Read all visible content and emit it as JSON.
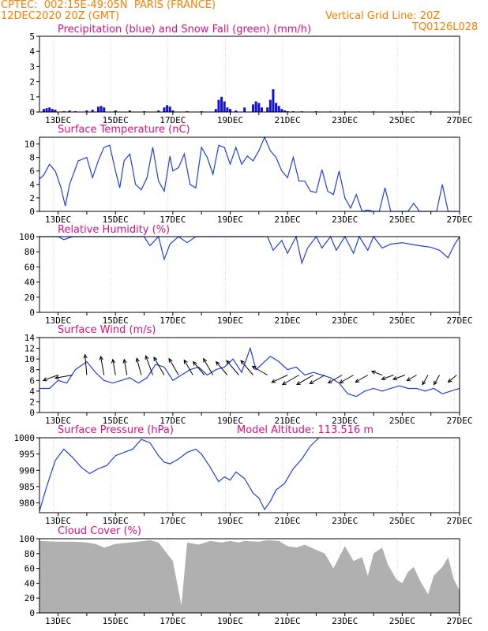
{
  "header": {
    "line1_left": "CPTEC:  002:15E-49:05N  PARIS (FRANCE)",
    "line2_left": "12DEC2020 20Z (GMT)",
    "line2_right": "Vertical Grid Line: 20Z",
    "code": "TQ0126L028"
  },
  "colors": {
    "title": "#e0107a",
    "header": "#ff7f00",
    "line": "#2040e0",
    "precip": "#1010e0",
    "snow": "#20a020",
    "cloud": "#b0b0b0",
    "grid": "#000000"
  },
  "x_axis": {
    "range_days": [
      12.35,
      27.0
    ],
    "labels": [
      "13DEC",
      "15DEC",
      "17DEC",
      "19DEC",
      "21DEC",
      "23DEC",
      "25DEC",
      "27DEC"
    ],
    "label_days": [
      13,
      15,
      17,
      19,
      21,
      23,
      25,
      27
    ]
  },
  "chart_data": [
    {
      "type": "bar",
      "title": "Precipitation (blue) and Snow Fall (green) (mm/h)",
      "ylim": [
        0,
        5
      ],
      "yticks": [
        "0",
        "1",
        "2",
        "3",
        "4",
        "5"
      ],
      "series": [
        {
          "name": "Precipitation",
          "x": [
            12.5,
            12.6,
            12.7,
            12.8,
            12.9,
            13.2,
            13.4,
            13.6,
            14.0,
            14.2,
            14.4,
            14.5,
            14.6,
            15.0,
            15.5,
            16.0,
            16.5,
            16.7,
            16.8,
            16.9,
            17.0,
            17.5,
            18.0,
            18.5,
            18.6,
            18.7,
            18.8,
            18.9,
            19.0,
            19.2,
            19.5,
            19.8,
            19.9,
            20.0,
            20.1,
            20.3,
            20.4,
            20.5,
            20.6,
            20.7,
            20.8,
            20.9,
            21.0,
            21.2,
            21.5,
            22.0,
            22.5
          ],
          "values": [
            0.2,
            0.25,
            0.3,
            0.2,
            0.15,
            0.05,
            0.1,
            0.05,
            0.1,
            0.15,
            0.35,
            0.4,
            0.3,
            0.1,
            0.1,
            0.05,
            0.1,
            0.3,
            0.45,
            0.35,
            0.1,
            0.05,
            0.05,
            0.2,
            0.8,
            1.0,
            0.7,
            0.3,
            0.2,
            0.1,
            0.3,
            0.5,
            0.7,
            0.6,
            0.3,
            0.3,
            0.8,
            1.5,
            0.6,
            0.4,
            0.2,
            0.1,
            0.05,
            0.05,
            0.05,
            0.05,
            0.02
          ]
        },
        {
          "name": "Snow Fall",
          "x": [
            21.5,
            22.0,
            22.5,
            23.0,
            23.5,
            24.0,
            24.5,
            25.0,
            25.5,
            26.0,
            26.5
          ],
          "values": [
            0.05,
            0.03,
            0.04,
            0.05,
            0.04,
            0.05,
            0.03,
            0.05,
            0.04,
            0.06,
            0.03
          ]
        }
      ]
    },
    {
      "type": "line",
      "title": "Surface Temperature (nC)",
      "ylim": [
        0,
        11
      ],
      "yticks": [
        "0",
        "2",
        "4",
        "6",
        "8",
        "10"
      ],
      "ytick_values": [
        0,
        2,
        4,
        6,
        8,
        10
      ],
      "series": [
        {
          "name": "Temperature",
          "x": [
            12.35,
            12.5,
            12.7,
            12.9,
            13.1,
            13.25,
            13.4,
            13.7,
            14.0,
            14.2,
            14.4,
            14.6,
            14.8,
            15.0,
            15.15,
            15.3,
            15.5,
            15.7,
            15.9,
            16.1,
            16.3,
            16.5,
            16.7,
            16.9,
            17.0,
            17.2,
            17.4,
            17.6,
            17.8,
            18.0,
            18.2,
            18.4,
            18.6,
            18.8,
            19.0,
            19.2,
            19.4,
            19.6,
            19.8,
            20.0,
            20.2,
            20.4,
            20.6,
            20.8,
            21.0,
            21.2,
            21.4,
            21.6,
            21.8,
            22.0,
            22.2,
            22.4,
            22.6,
            22.8,
            23.0,
            23.2,
            23.4,
            23.6,
            23.8,
            24.0,
            24.2,
            24.4,
            24.6,
            24.8,
            25.0,
            25.2,
            25.4,
            25.6,
            25.8,
            26.0,
            26.2,
            26.4,
            26.6,
            26.8,
            27.0
          ],
          "values": [
            4.8,
            5.4,
            7.0,
            6.0,
            3.5,
            0.8,
            4.0,
            7.5,
            8.0,
            5.0,
            7.5,
            9.5,
            9.8,
            6.0,
            3.5,
            7.5,
            8.5,
            4.0,
            3.2,
            5.0,
            9.5,
            4.5,
            3.0,
            8.2,
            6.0,
            6.5,
            8.5,
            4.0,
            3.5,
            9.5,
            8.0,
            5.5,
            9.8,
            9.5,
            7.0,
            9.5,
            7.0,
            8.2,
            7.5,
            9.0,
            11.0,
            9.0,
            8.0,
            6.0,
            5.0,
            8.0,
            4.5,
            4.5,
            3.0,
            2.8,
            6.2,
            3.0,
            2.5,
            6.0,
            2.0,
            0.5,
            2.5,
            0.0,
            0.2,
            0.0,
            0.0,
            3.5,
            0.0,
            0.0,
            0.0,
            0.0,
            1.2,
            0.0,
            0.0,
            0.0,
            0.0,
            4.0,
            0.0,
            0.0,
            0.0
          ]
        }
      ]
    },
    {
      "type": "line",
      "title": "Relative Humidity (%)",
      "ylim": [
        0,
        100
      ],
      "yticks": [
        "0",
        "20",
        "40",
        "60",
        "80",
        "100"
      ],
      "ytick_values": [
        0,
        20,
        40,
        60,
        80,
        100
      ],
      "series": [
        {
          "name": "Relative Humidity",
          "x": [
            12.35,
            13.0,
            13.2,
            13.5,
            14.0,
            14.5,
            15.0,
            15.5,
            16.0,
            16.2,
            16.5,
            16.7,
            16.9,
            17.2,
            17.5,
            17.8,
            18.0,
            18.5,
            19.0,
            19.5,
            20.0,
            20.3,
            20.5,
            20.8,
            21.0,
            21.3,
            21.5,
            21.7,
            22.0,
            22.2,
            22.5,
            22.7,
            23.0,
            23.3,
            23.5,
            23.8,
            24.0,
            24.3,
            24.6,
            25.0,
            25.3,
            25.6,
            26.0,
            26.3,
            26.6,
            26.8,
            27.0
          ],
          "values": [
            100,
            100,
            96,
            100,
            100,
            100,
            100,
            100,
            100,
            88,
            100,
            70,
            90,
            100,
            92,
            100,
            100,
            100,
            100,
            100,
            100,
            100,
            82,
            95,
            78,
            100,
            65,
            85,
            100,
            85,
            100,
            82,
            100,
            78,
            100,
            82,
            100,
            85,
            90,
            92,
            90,
            88,
            86,
            82,
            72,
            88,
            100
          ]
        }
      ]
    },
    {
      "type": "line",
      "title": "Surface Wind (m/s)",
      "ylim": [
        0,
        14
      ],
      "yticks": [
        "0",
        "2",
        "4",
        "6",
        "8",
        "10",
        "12",
        "14"
      ],
      "ytick_values": [
        0,
        2,
        4,
        6,
        8,
        10,
        12,
        14
      ],
      "series": [
        {
          "name": "Wind Speed",
          "x": [
            12.35,
            12.7,
            13.0,
            13.3,
            13.6,
            14.0,
            14.3,
            14.6,
            14.9,
            15.2,
            15.5,
            15.8,
            16.1,
            16.4,
            16.7,
            17.0,
            17.3,
            17.6,
            17.9,
            18.2,
            18.5,
            18.8,
            19.1,
            19.4,
            19.7,
            19.9,
            20.1,
            20.4,
            20.7,
            21.0,
            21.3,
            21.6,
            21.9,
            22.2,
            22.5,
            22.8,
            23.1,
            23.4,
            23.7,
            24.0,
            24.3,
            24.6,
            24.9,
            25.2,
            25.5,
            25.8,
            26.1,
            26.4,
            26.7,
            27.0
          ],
          "values": [
            4.5,
            4.5,
            6.0,
            5.5,
            8.0,
            9.5,
            7.5,
            6.0,
            5.5,
            6.0,
            6.5,
            5.5,
            6.5,
            9.0,
            8.5,
            6.0,
            7.0,
            8.0,
            8.5,
            7.0,
            8.0,
            8.5,
            10.0,
            7.5,
            12.0,
            8.0,
            9.0,
            10.5,
            9.5,
            8.0,
            8.5,
            7.0,
            7.5,
            7.0,
            6.5,
            5.5,
            3.5,
            3.0,
            4.0,
            4.5,
            4.0,
            4.5,
            5.0,
            4.5,
            4.5,
            4.0,
            4.5,
            3.5,
            4.0,
            4.5
          ]
        }
      ],
      "wind_vectors": {
        "x": [
          13.0,
          13.5,
          14.0,
          14.6,
          15.0,
          15.4,
          15.9,
          16.3,
          16.7,
          17.2,
          17.7,
          18.1,
          18.4,
          18.9,
          19.3,
          19.8,
          20.3,
          21.0,
          21.4,
          21.9,
          22.3,
          22.9,
          23.3,
          23.8,
          24.3,
          24.7,
          25.1,
          25.5,
          25.9,
          26.3,
          26.9
        ],
        "speed": [
          5.0,
          5.5,
          6.5,
          6.0,
          5.0,
          5.0,
          5.5,
          6.5,
          6.5,
          6.0,
          5.5,
          5.5,
          6.0,
          5.5,
          6.0,
          6.0,
          5.5,
          5.5,
          6.0,
          6.0,
          5.5,
          5.0,
          5.0,
          4.5,
          3.5,
          4.0,
          4.0,
          3.5,
          3.5,
          3.5,
          3.5
        ],
        "direction_deg": [
          250,
          260,
          355,
          350,
          350,
          350,
          345,
          340,
          330,
          330,
          330,
          320,
          330,
          320,
          320,
          320,
          300,
          245,
          240,
          240,
          240,
          240,
          240,
          240,
          290,
          250,
          250,
          240,
          210,
          210,
          230
        ]
      }
    },
    {
      "type": "line",
      "title": "Surface Pressure (hPa)",
      "subtitle": "Model Altitude: 113.516 m",
      "ylim": [
        977,
        1000
      ],
      "yticks": [
        "980",
        "985",
        "990",
        "995",
        "1000"
      ],
      "ytick_values": [
        980,
        985,
        990,
        995,
        1000
      ],
      "series": [
        {
          "name": "Surface Pressure",
          "x": [
            12.35,
            12.6,
            12.9,
            13.2,
            13.5,
            13.8,
            14.1,
            14.4,
            14.7,
            15.0,
            15.3,
            15.6,
            15.9,
            16.2,
            16.5,
            16.7,
            16.9,
            17.2,
            17.5,
            17.8,
            18.0,
            18.3,
            18.6,
            18.8,
            19.0,
            19.2,
            19.5,
            19.8,
            20.0,
            20.2,
            20.4,
            20.6,
            20.9,
            21.2,
            21.5,
            21.8,
            22.1
          ],
          "values": [
            977.5,
            985.0,
            993.0,
            996.5,
            994.0,
            991.0,
            989.0,
            990.5,
            991.5,
            994.5,
            995.5,
            996.5,
            999.5,
            998.5,
            994.5,
            992.5,
            992.0,
            993.5,
            995.5,
            996.5,
            995.0,
            991.0,
            986.5,
            988.0,
            987.0,
            989.5,
            987.5,
            983.0,
            981.5,
            978.0,
            980.5,
            984.0,
            986.0,
            990.5,
            993.5,
            997.5,
            1000.5
          ]
        }
      ]
    },
    {
      "type": "area",
      "title": "Cloud Cover (%)",
      "ylim": [
        0,
        100
      ],
      "yticks": [
        "0",
        "20",
        "40",
        "60",
        "80",
        "100"
      ],
      "ytick_values": [
        0,
        20,
        40,
        60,
        80,
        100
      ],
      "series": [
        {
          "name": "Cloud Cover",
          "x": [
            12.35,
            13.0,
            13.5,
            14.0,
            14.3,
            14.6,
            15.0,
            15.5,
            16.0,
            16.2,
            16.5,
            17.0,
            17.3,
            17.5,
            17.9,
            18.3,
            18.7,
            19.0,
            19.3,
            19.5,
            20.0,
            20.3,
            20.7,
            21.0,
            21.3,
            21.6,
            22.0,
            22.3,
            22.6,
            23.0,
            23.3,
            23.6,
            23.8,
            24.0,
            24.3,
            24.5,
            24.8,
            25.0,
            25.2,
            25.4,
            25.6,
            25.9,
            26.1,
            26.4,
            26.6,
            26.8,
            27.0
          ],
          "values": [
            97,
            96,
            96,
            95,
            93,
            88,
            93,
            95,
            97,
            98,
            95,
            70,
            10,
            95,
            92,
            97,
            95,
            97,
            95,
            97,
            96,
            98,
            97,
            90,
            88,
            92,
            85,
            80,
            60,
            90,
            70,
            75,
            50,
            80,
            88,
            65,
            45,
            40,
            55,
            62,
            45,
            25,
            50,
            62,
            75,
            45,
            30
          ]
        }
      ]
    }
  ]
}
